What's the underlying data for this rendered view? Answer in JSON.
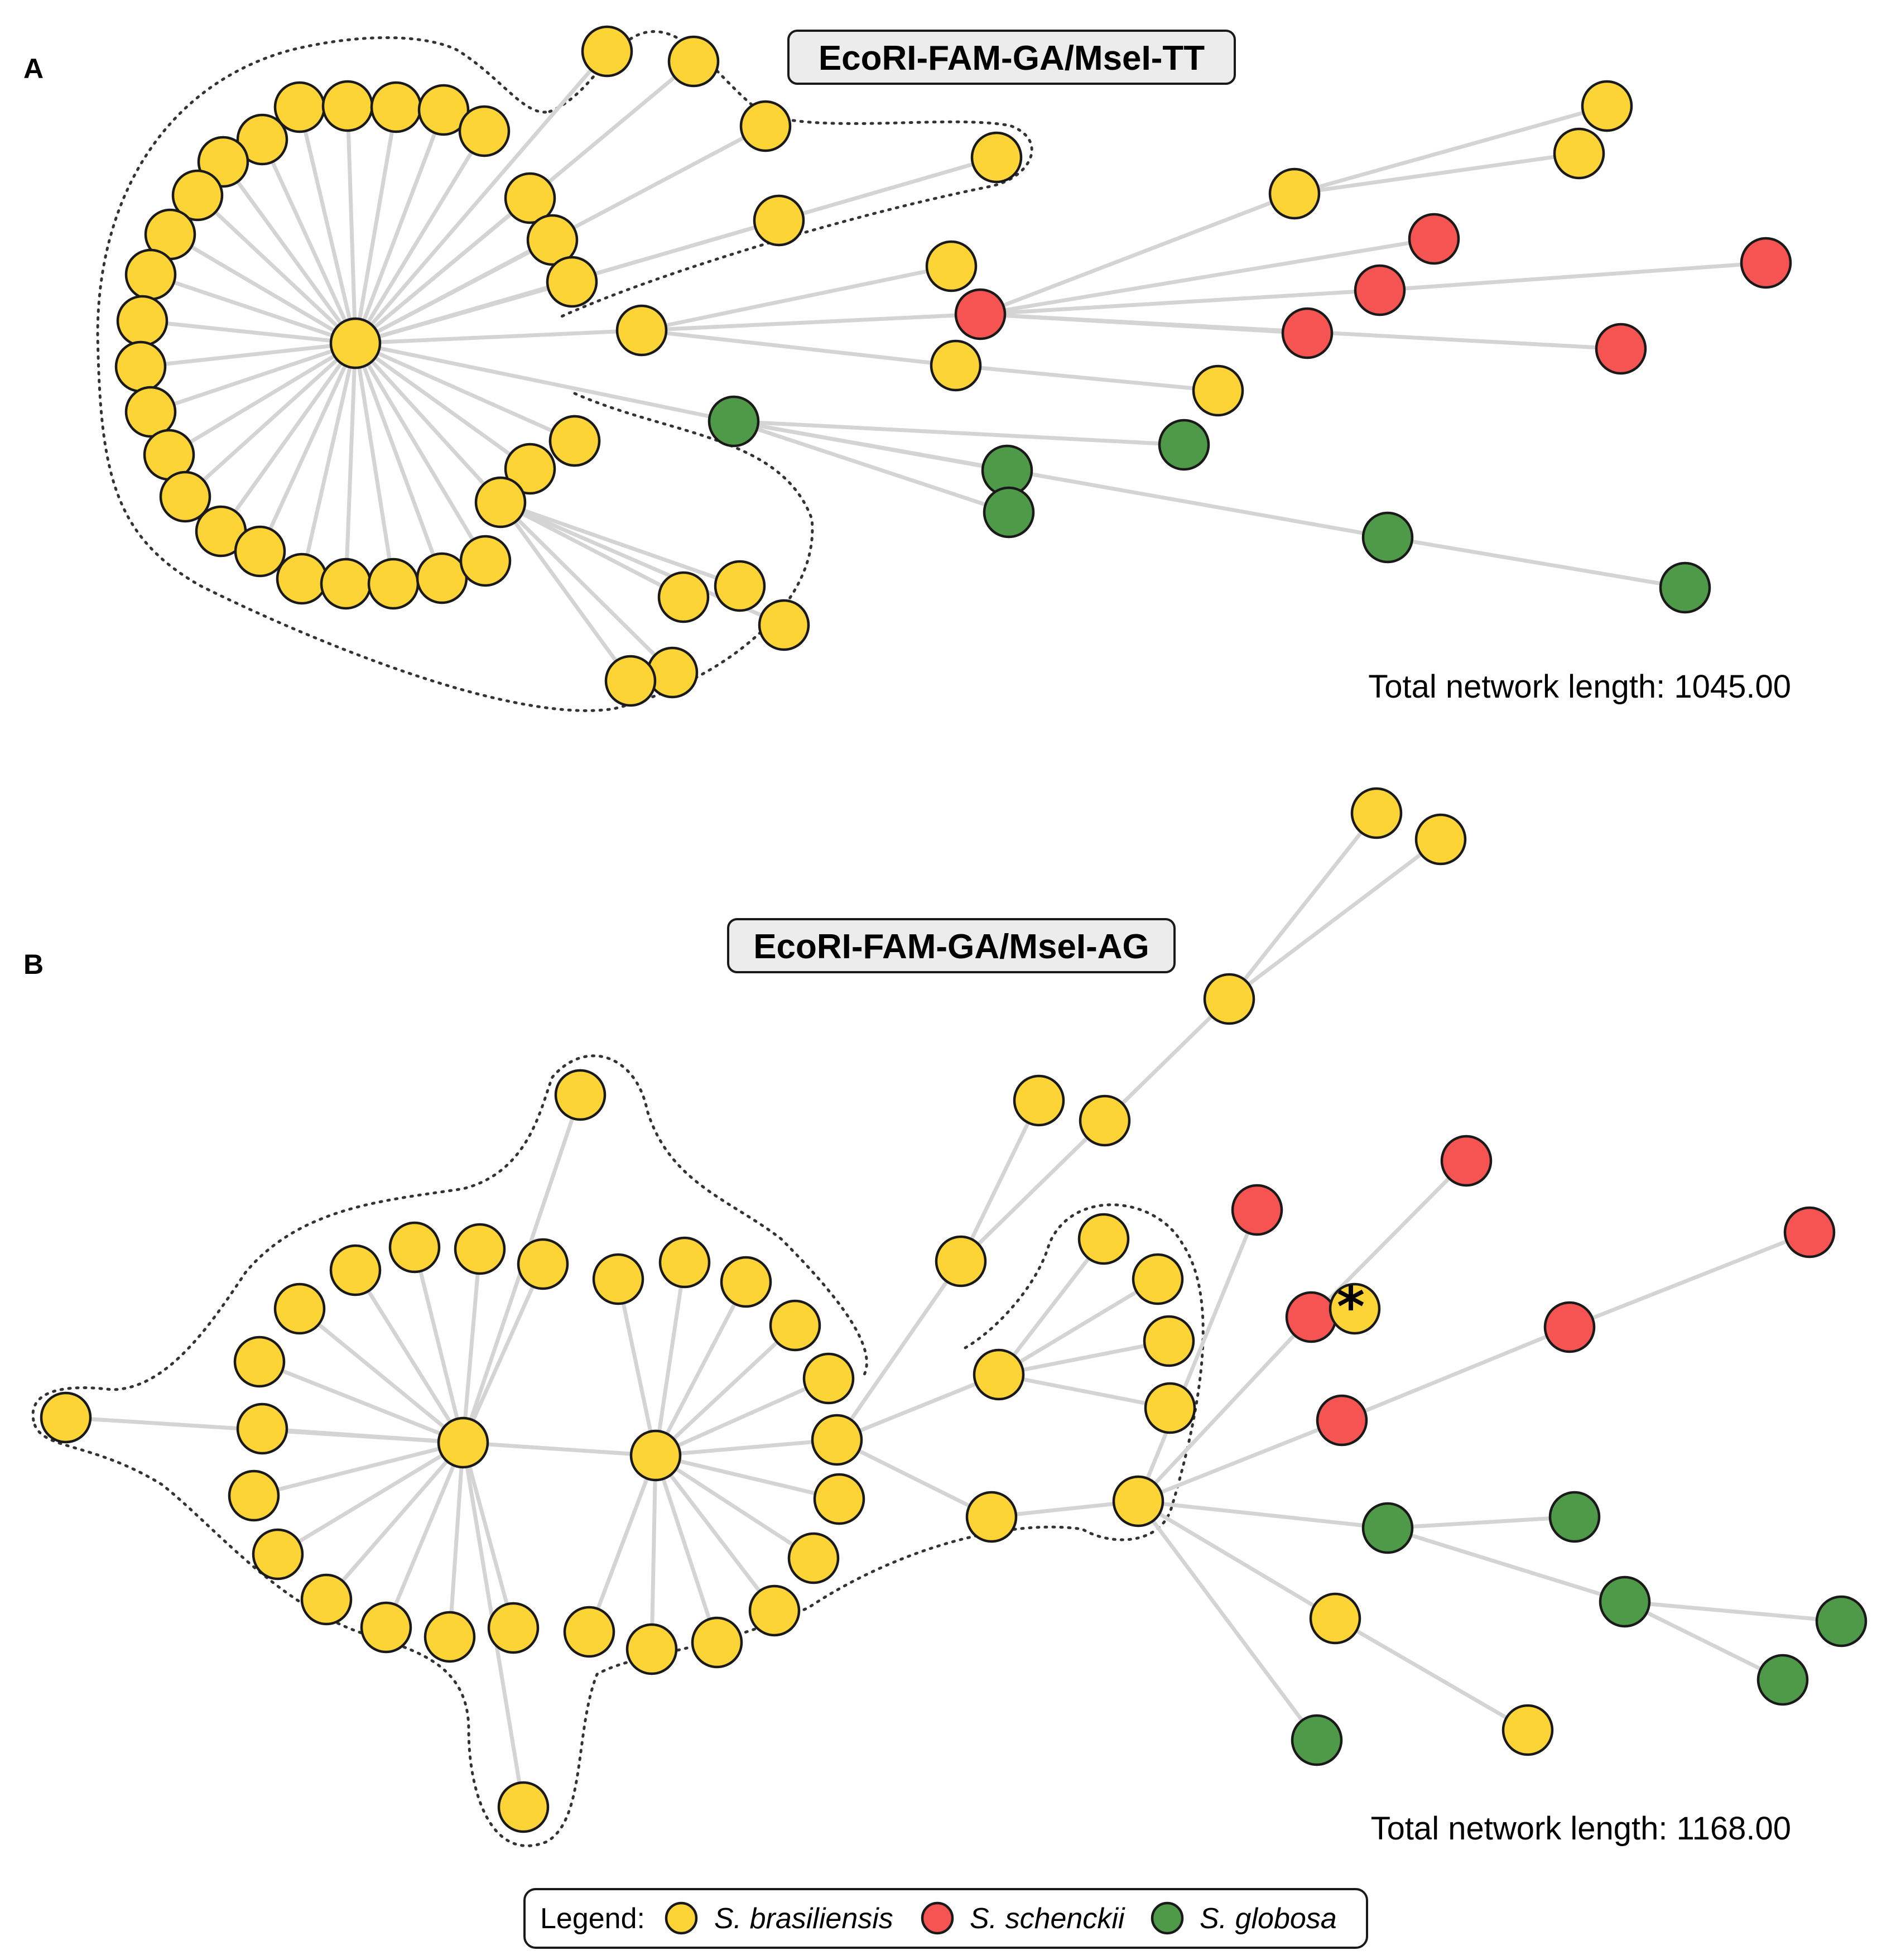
{
  "colors": {
    "brasiliensis": "#fdd435",
    "schenckii": "#f65353",
    "globosa": "#4f9a48",
    "edge": "#d4d4d4",
    "title_box": "#ececec"
  },
  "panels": [
    {
      "letter": "A",
      "title": "EcoRI-FAM-GA/MseI-TT",
      "total_length": "Total network length: 1045.00"
    },
    {
      "letter": "B",
      "title": "EcoRI-FAM-GA/MseI-AG",
      "total_length": "Total network length: 1168.00",
      "marker": "*"
    }
  ],
  "legend": {
    "label": "Legend:",
    "items": [
      {
        "species": "brasiliensis",
        "name": "S. brasiliensis"
      },
      {
        "species": "schenckii",
        "name": "S. schenckii"
      },
      {
        "species": "globosa",
        "name": "S. globosa"
      }
    ]
  }
}
